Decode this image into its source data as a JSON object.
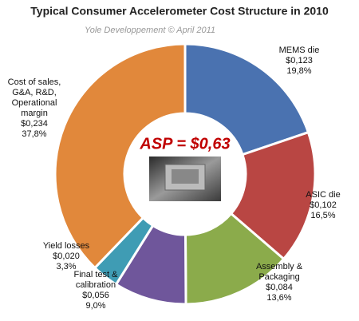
{
  "chart_data": {
    "type": "donut",
    "title": "Typical Consumer Accelerometer Cost Structure in 2010",
    "subtitle": "Yole Developpement © April 2011",
    "annotation": "ASP = $0,63",
    "categories": [
      "MEMS die",
      "ASIC die",
      "Assembly & Packaging",
      "Final test & calibration",
      "Yield losses",
      "Cost of sales, G&A, R&D, Operational margin"
    ],
    "values": [
      19.8,
      16.5,
      13.6,
      9.0,
      3.3,
      37.8
    ],
    "value_labels": [
      "19,8%",
      "16,5%",
      "13,6%",
      "9,0%",
      "3,3%",
      "37,8%"
    ],
    "costs": [
      {
        "value": 0.123,
        "label": "$0,123"
      },
      {
        "value": 0.102,
        "label": "$0,102"
      },
      {
        "value": 0.084,
        "label": "$0,084"
      },
      {
        "value": 0.056,
        "label": "$0,056"
      },
      {
        "value": 0.02,
        "label": "$0,020"
      },
      {
        "value": 0.234,
        "label": "$0,234"
      }
    ],
    "colors": [
      "#4a72b0",
      "#b94643",
      "#8bab4b",
      "#6f569b",
      "#3f9cb4",
      "#e1883b"
    ]
  }
}
